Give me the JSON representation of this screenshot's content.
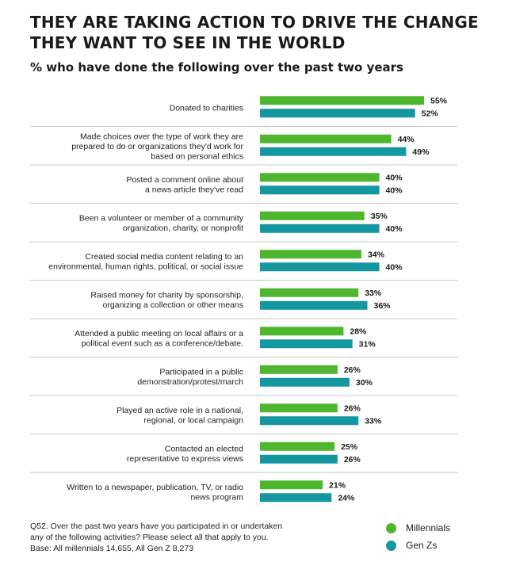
{
  "title_line1": "THEY ARE TAKING ACTION TO DRIVE THE CHANGE",
  "title_line2": "THEY WANT TO SEE IN THE WORLD",
  "subtitle": "% who have done the following over the past two years",
  "colors": {
    "millennials": "#4eb72f",
    "genz": "#14979f",
    "separator": "#c8c8c8"
  },
  "chart_data": {
    "type": "bar",
    "orientation": "horizontal",
    "title": "THEY ARE TAKING ACTION TO DRIVE THE CHANGE THEY WANT TO SEE IN THE WORLD",
    "subtitle": "% who have done the following over the past two years",
    "unit": "%",
    "xlim": [
      0,
      60
    ],
    "grid": false,
    "legend_position": "bottom-right",
    "categories": [
      [
        "Donated to charities"
      ],
      [
        "Made choices over the type of work they are",
        "prepared to do or organizations they'd work for",
        "based on personal ethics"
      ],
      [
        "Posted a comment online about",
        "a news article they've read"
      ],
      [
        "Been a volunteer or member of a community",
        "organization, charity, or nonprofit"
      ],
      [
        "Created social media content relating to an",
        "environmental, human rights, political, or social issue"
      ],
      [
        "Raised money for charity by sponsorship,",
        "organizing a collection or other means"
      ],
      [
        "Attended a public meeting on local affairs or a",
        "political event such as a conference/debate."
      ],
      [
        "Participated in a public",
        "demonstration/protest/march"
      ],
      [
        "Played an active role in a national,",
        "regional, or local campaign"
      ],
      [
        "Contacted an elected",
        "representative to express views"
      ],
      [
        "Written to a newspaper, publication, TV, or radio",
        "news program"
      ]
    ],
    "series": [
      {
        "name": "Millennials",
        "values": [
          55,
          44,
          40,
          35,
          34,
          33,
          28,
          26,
          26,
          25,
          21
        ]
      },
      {
        "name": "Gen Zs",
        "values": [
          52,
          49,
          40,
          40,
          40,
          36,
          31,
          30,
          33,
          26,
          24
        ]
      }
    ]
  },
  "footnote": {
    "line1": "Q52. Over the past two years have you participated in or undertaken",
    "line2": "any of the following activities? Please select all that apply to you.",
    "line3": "Base: All millennials 14,655, All Gen Z 8,273"
  },
  "legend": {
    "millennials": "Millennials",
    "genz": "Gen Zs"
  }
}
